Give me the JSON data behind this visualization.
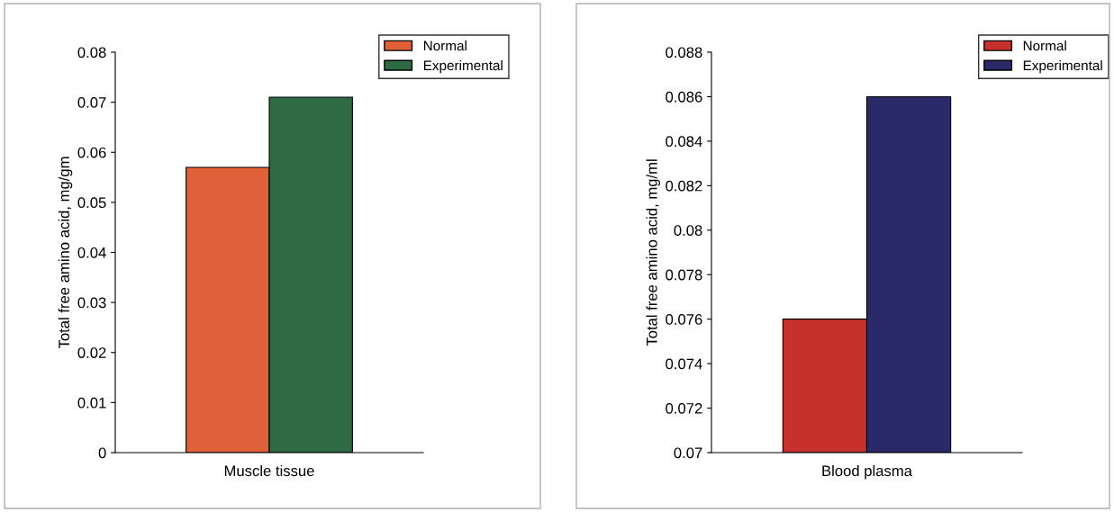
{
  "chart_data": [
    {
      "type": "bar",
      "ylabel": "Total free amino acid, mg/gm",
      "categories": [
        "Muscle tissue"
      ],
      "series": [
        {
          "name": "Normal",
          "color": "#e0603a",
          "values": [
            0.057
          ]
        },
        {
          "name": "Experimental",
          "color": "#2e6b45",
          "values": [
            0.071
          ]
        }
      ],
      "ylim": [
        0,
        0.08
      ],
      "yticks": [
        0,
        0.01,
        0.02,
        0.03,
        0.04,
        0.05,
        0.06,
        0.07,
        0.08
      ],
      "grid": false,
      "legend": "top right"
    },
    {
      "type": "bar",
      "ylabel": "Total free amino acid, mg/ml",
      "categories": [
        "Blood plasma"
      ],
      "series": [
        {
          "name": "Normal",
          "color": "#c8302c",
          "values": [
            0.076
          ]
        },
        {
          "name": "Experimental",
          "color": "#2a2a6a",
          "values": [
            0.086
          ]
        }
      ],
      "ylim": [
        0.07,
        0.088
      ],
      "yticks": [
        0.07,
        0.072,
        0.074,
        0.076,
        0.078,
        0.08,
        0.082,
        0.084,
        0.086,
        0.088
      ],
      "grid": false,
      "legend": "top right"
    }
  ]
}
